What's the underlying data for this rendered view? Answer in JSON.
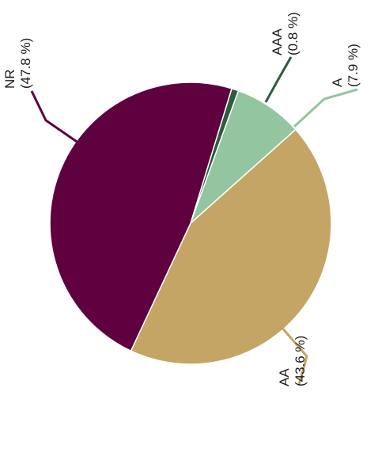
{
  "chart_data": {
    "type": "pie",
    "title": "",
    "legend": "none",
    "slices": [
      {
        "label": "AAA",
        "value": 0.8,
        "display": "(0.8 %)",
        "color": "#2e5b3c"
      },
      {
        "label": "A",
        "value": 7.9,
        "display": "(7.9 %)",
        "color": "#93c5a1"
      },
      {
        "label": "AA",
        "value": 43.6,
        "display": "(43.6 %)",
        "color": "#c4a566"
      },
      {
        "label": "NR",
        "value": 47.8,
        "display": "(47.8 %)",
        "color": "#5f003f"
      }
    ]
  }
}
